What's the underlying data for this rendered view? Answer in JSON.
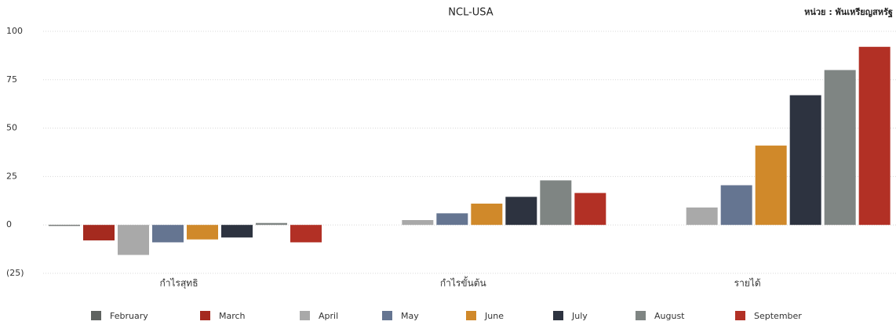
{
  "chart_data": {
    "type": "bar",
    "title": "NCL-USA",
    "unit_label": "หน่วย : พันเหรียญสหรัฐ",
    "categories": [
      "กำไรสุทธิ",
      "กำไรขั้นต้น",
      "รายได้"
    ],
    "series": [
      {
        "name": "February",
        "color": "#5f6360",
        "values": [
          -0.5,
          0,
          0
        ]
      },
      {
        "name": "March",
        "color": "#a52a1f",
        "values": [
          -8,
          0,
          0
        ]
      },
      {
        "name": "April",
        "color": "#a9a9a9",
        "values": [
          -15.5,
          2.5,
          9
        ]
      },
      {
        "name": "May",
        "color": "#657591",
        "values": [
          -9,
          6,
          20.5
        ]
      },
      {
        "name": "June",
        "color": "#d0892a",
        "values": [
          -7.5,
          11,
          41
        ]
      },
      {
        "name": "July",
        "color": "#2d3340",
        "values": [
          -6.5,
          14.5,
          67
        ]
      },
      {
        "name": "August",
        "color": "#7f8583",
        "values": [
          1,
          23,
          80
        ]
      },
      {
        "name": "September",
        "color": "#b23025",
        "values": [
          -9,
          16.5,
          92
        ]
      }
    ],
    "ylim": [
      -25,
      100
    ],
    "yticks": [
      {
        "value": -25,
        "label": "(25)"
      },
      0,
      25,
      50,
      75,
      100
    ],
    "grid": true,
    "legend": "bottom"
  }
}
